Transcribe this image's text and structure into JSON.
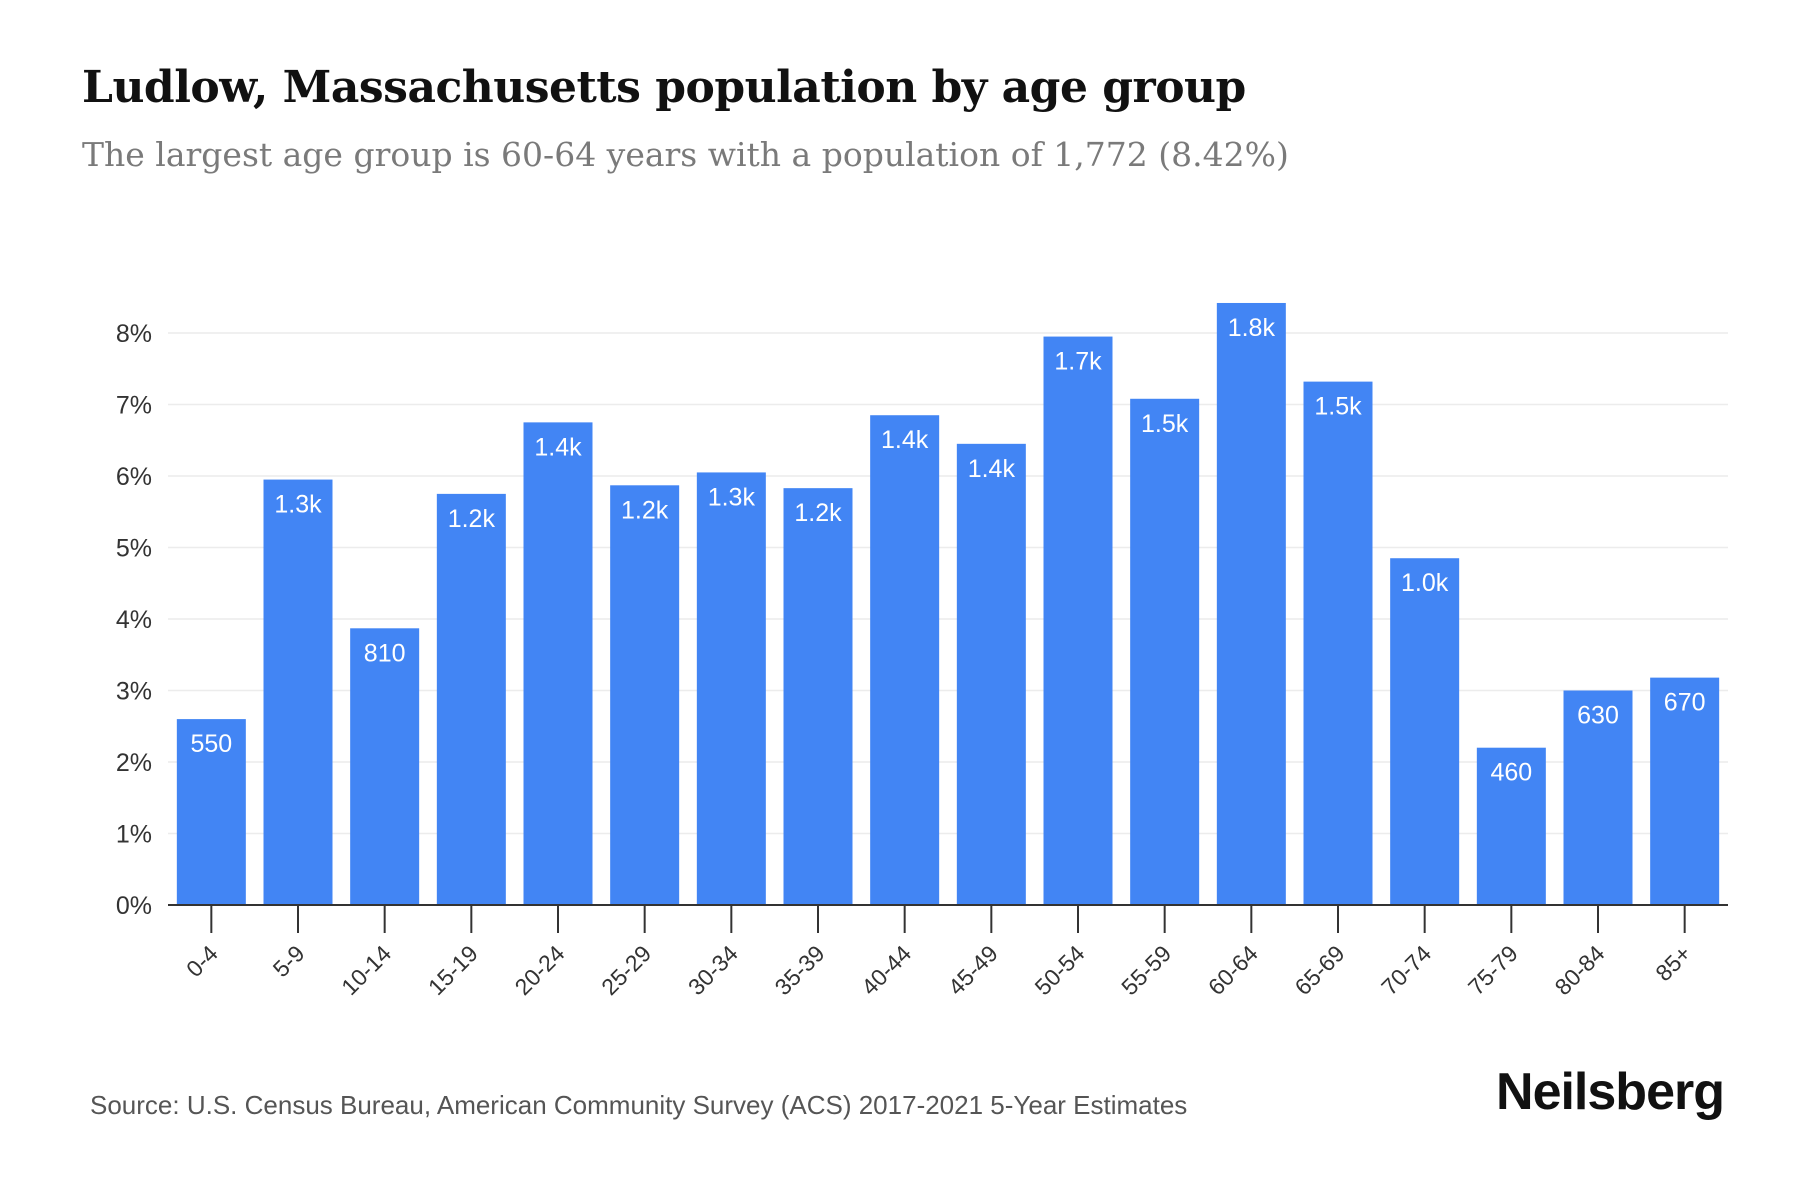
{
  "header": {
    "title": "Ludlow, Massachusetts population by age group",
    "subtitle": "The largest age group is 60-64 years with a population of 1,772 (8.42%)"
  },
  "footer": {
    "source": "Source: U.S. Census Bureau, American Community Survey (ACS) 2017-2021 5-Year Estimates",
    "brand": "Neilsberg"
  },
  "colors": {
    "bar": "#4285f4",
    "bar_label": "#ffffff",
    "grid": "#ececec",
    "axis": "#333333",
    "tick_text": "#333333"
  },
  "chart_data": {
    "type": "bar",
    "title": "Ludlow, Massachusetts population by age group",
    "subtitle": "The largest age group is 60-64 years with a population of 1,772 (8.42%)",
    "xlabel": "",
    "ylabel": "",
    "ylim": [
      0,
      8.5
    ],
    "yticks": [
      0,
      1,
      2,
      3,
      4,
      5,
      6,
      7,
      8
    ],
    "ytick_labels": [
      "0%",
      "1%",
      "2%",
      "3%",
      "4%",
      "5%",
      "6%",
      "7%",
      "8%"
    ],
    "grid": true,
    "legend": "none",
    "categories": [
      "0-4",
      "5-9",
      "10-14",
      "15-19",
      "20-24",
      "25-29",
      "30-34",
      "35-39",
      "40-44",
      "45-49",
      "50-54",
      "55-59",
      "60-64",
      "65-69",
      "70-74",
      "75-79",
      "80-84",
      "85+"
    ],
    "values": [
      2.6,
      5.95,
      3.87,
      5.75,
      6.75,
      5.87,
      6.05,
      5.83,
      6.85,
      6.45,
      7.95,
      7.08,
      8.42,
      7.32,
      4.85,
      2.2,
      3.0,
      3.18
    ],
    "data_labels": [
      "550",
      "1.3k",
      "810",
      "1.2k",
      "1.4k",
      "1.2k",
      "1.3k",
      "1.2k",
      "1.4k",
      "1.4k",
      "1.7k",
      "1.5k",
      "1.8k",
      "1.5k",
      "1.0k",
      "460",
      "630",
      "670"
    ]
  }
}
